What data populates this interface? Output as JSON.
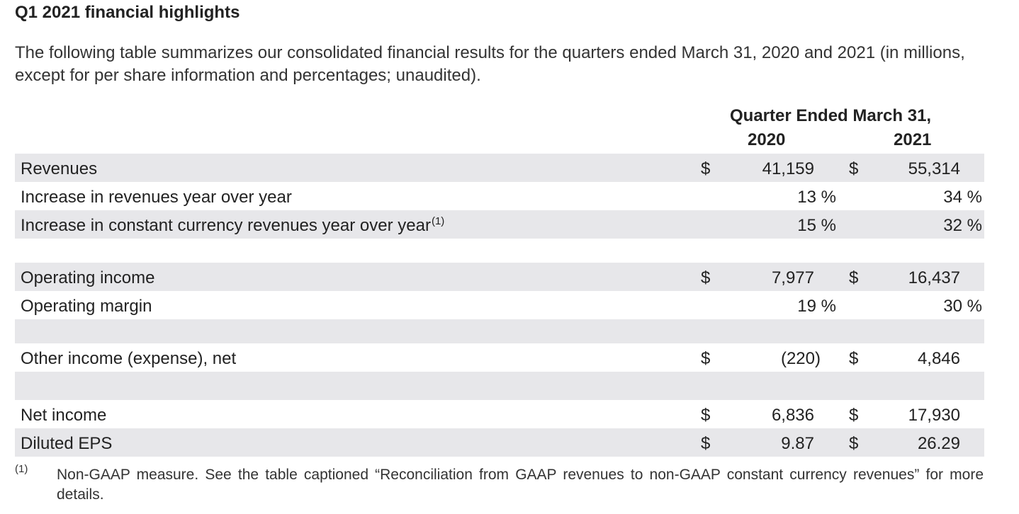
{
  "heading": "Q1 2021 financial highlights",
  "intro": "The following table summarizes our consolidated financial results for the quarters ended March 31, 2020 and 2021 (in millions, except for per share information and percentages; unaudited).",
  "columns": {
    "group": "Quarter Ended March 31,",
    "year1": "2020",
    "year2": "2021"
  },
  "rows": [
    {
      "label": "Revenues",
      "sup": "",
      "d1": "$",
      "v1": "41,159",
      "d2": "$",
      "v2": "55,314"
    },
    {
      "label": "Increase in revenues year over year",
      "sup": "",
      "d1": "",
      "v1": "13 %",
      "d2": "",
      "v2": "34 %"
    },
    {
      "label": "Increase in constant currency revenues year over year",
      "sup": "(1)",
      "d1": "",
      "v1": "15 %",
      "d2": "",
      "v2": "32 %"
    },
    {
      "label": "Operating income",
      "sup": "",
      "d1": "$",
      "v1": "7,977",
      "d2": "$",
      "v2": "16,437"
    },
    {
      "label": "Operating margin",
      "sup": "",
      "d1": "",
      "v1": "19 %",
      "d2": "",
      "v2": "30 %"
    },
    {
      "label": "Other income (expense), net",
      "sup": "",
      "d1": "$",
      "v1": "(220)",
      "d2": "$",
      "v2": "4,846"
    },
    {
      "label": "Net income",
      "sup": "",
      "d1": "$",
      "v1": "6,836",
      "d2": "$",
      "v2": "17,930"
    },
    {
      "label": "Diluted EPS",
      "sup": "",
      "d1": "$",
      "v1": "9.87",
      "d2": "$",
      "v2": "26.29"
    }
  ],
  "footnote": {
    "mark": "(1)",
    "text": "Non-GAAP measure. See the table captioned “Reconciliation from GAAP revenues to non-GAAP constant currency revenues” for more details."
  },
  "colors": {
    "row_shade": "#e7e7ea",
    "text": "#222222"
  }
}
